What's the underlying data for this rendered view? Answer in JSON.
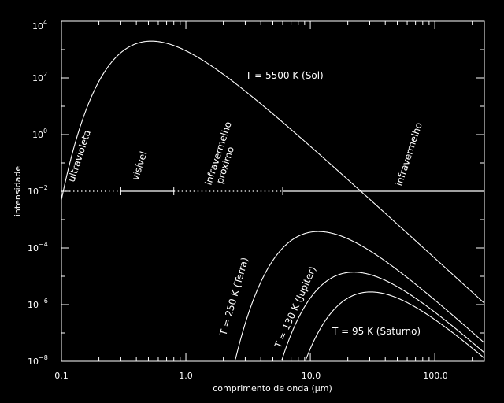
{
  "chart_data": {
    "type": "line",
    "title": "",
    "xlabel": "comprimento de onda (μm)",
    "ylabel": "intensidade",
    "x_scale": "log",
    "y_scale": "log",
    "xlim": [
      0.1,
      250
    ],
    "ylim": [
      1e-08,
      10000
    ],
    "grid": false,
    "x_ticks": [
      {
        "value": 0.1,
        "label": "0.1"
      },
      {
        "value": 1.0,
        "label": "1.0"
      },
      {
        "value": 10.0,
        "label": "10.0"
      },
      {
        "value": 100.0,
        "label": "100.0"
      }
    ],
    "y_ticks": [
      {
        "value": 1e-08,
        "base": "10",
        "exp": "−8"
      },
      {
        "value": 1e-06,
        "base": "10",
        "exp": "−6"
      },
      {
        "value": 0.0001,
        "base": "10",
        "exp": "−4"
      },
      {
        "value": 0.01,
        "base": "10",
        "exp": "−2"
      },
      {
        "value": 1,
        "base": "10",
        "exp": "0"
      },
      {
        "value": 100,
        "base": "10",
        "exp": "2"
      },
      {
        "value": 10000,
        "base": "10",
        "exp": "4"
      }
    ],
    "series": [
      {
        "name": "T = 5500 K (Sol)",
        "temperature_K": 5500,
        "peak_intensity": 2000
      },
      {
        "name": "T = 250 K (Terra)",
        "temperature_K": 250,
        "peak_intensity": 0.00038
      },
      {
        "name": "T = 130 K (Jupiter)",
        "temperature_K": 130,
        "peak_intensity": 1.4e-05
      },
      {
        "name": "T = 95 K (Saturno)",
        "temperature_K": 95,
        "peak_intensity": 2.8e-06
      }
    ],
    "bands": {
      "intensity_level": 0.01,
      "boundaries": [
        0.1,
        0.3,
        0.8,
        6.0,
        250
      ],
      "labels": [
        "ultravioleta",
        "visível",
        "infravermelho\nproximo",
        "infravermelho"
      ],
      "line_styles": [
        "dotted",
        "solid",
        "dotted",
        "solid"
      ]
    }
  }
}
